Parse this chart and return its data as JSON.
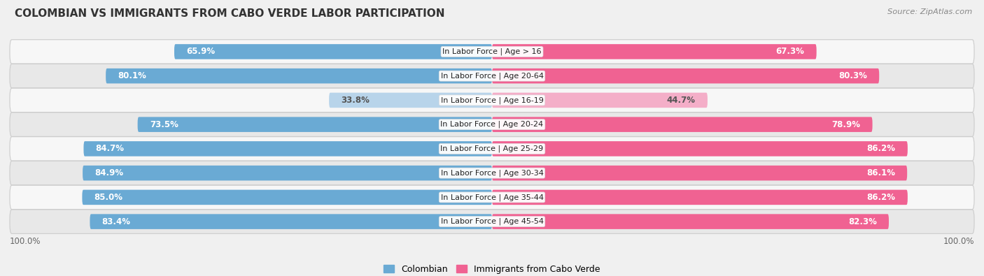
{
  "title": "COLOMBIAN VS IMMIGRANTS FROM CABO VERDE LABOR PARTICIPATION",
  "source": "Source: ZipAtlas.com",
  "categories": [
    "In Labor Force | Age > 16",
    "In Labor Force | Age 20-64",
    "In Labor Force | Age 16-19",
    "In Labor Force | Age 20-24",
    "In Labor Force | Age 25-29",
    "In Labor Force | Age 30-34",
    "In Labor Force | Age 35-44",
    "In Labor Force | Age 45-54"
  ],
  "colombian_values": [
    65.9,
    80.1,
    33.8,
    73.5,
    84.7,
    84.9,
    85.0,
    83.4
  ],
  "caboverde_values": [
    67.3,
    80.3,
    44.7,
    78.9,
    86.2,
    86.1,
    86.2,
    82.3
  ],
  "colombian_color_strong": "#6aaad4",
  "colombian_color_light": "#b8d4ea",
  "caboverde_color_strong": "#f06292",
  "caboverde_color_light": "#f4aec8",
  "max_value": 100.0,
  "bg_color": "#f0f0f0",
  "row_bg_light": "#f7f7f7",
  "row_bg_dark": "#e8e8e8",
  "label_color_white": "#ffffff",
  "label_color_dark": "#555555",
  "footer_value": "100.0%",
  "title_fontsize": 11,
  "label_fontsize": 8.5,
  "category_fontsize": 8.0,
  "threshold": 50
}
